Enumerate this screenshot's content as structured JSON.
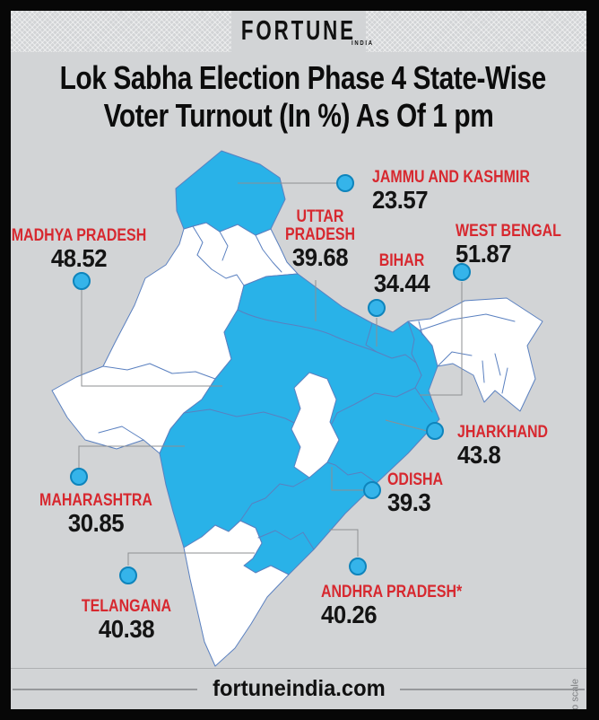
{
  "header": {
    "brand": "FORTUNE",
    "brand_sub": "INDIA"
  },
  "title": {
    "line1": "Lok Sabha Election Phase 4 State-Wise",
    "line2": "Voter Turnout (In %) As Of 1 pm"
  },
  "map": {
    "note": "Map not to scale",
    "states": [
      {
        "id": "jammu-and-kashmir",
        "name": "JAMMU AND KASHMIR",
        "label_lines": [
          "JAMMU AND KASHMIR"
        ],
        "value": "23.57",
        "highlighted": true
      },
      {
        "id": "uttar-pradesh",
        "name": "UTTAR PRADESH",
        "label_lines": [
          "UTTAR",
          "PRADESH"
        ],
        "value": "39.68",
        "highlighted": true
      },
      {
        "id": "bihar",
        "name": "BIHAR",
        "label_lines": [
          "BIHAR"
        ],
        "value": "34.44",
        "highlighted": true
      },
      {
        "id": "west-bengal",
        "name": "WEST BENGAL",
        "label_lines": [
          "WEST BENGAL"
        ],
        "value": "51.87",
        "highlighted": true
      },
      {
        "id": "madhya-pradesh",
        "name": "MADHYA PRADESH",
        "label_lines": [
          "MADHYA PRADESH"
        ],
        "value": "48.52",
        "highlighted": true
      },
      {
        "id": "jharkhand",
        "name": "JHARKHAND",
        "label_lines": [
          "JHARKHAND"
        ],
        "value": "43.8",
        "highlighted": true
      },
      {
        "id": "odisha",
        "name": "ODISHA",
        "label_lines": [
          "ODISHA"
        ],
        "value": "39.3",
        "highlighted": true
      },
      {
        "id": "maharashtra",
        "name": "MAHARASHTRA",
        "label_lines": [
          "MAHARASHTRA"
        ],
        "value": "30.85",
        "highlighted": true
      },
      {
        "id": "telangana",
        "name": "TELANGANA",
        "label_lines": [
          "TELANGANA"
        ],
        "value": "40.38",
        "highlighted": true
      },
      {
        "id": "andhra-pradesh",
        "name": "ANDHRA PRADESH*",
        "label_lines": [
          "ANDHRA PRADESH*"
        ],
        "value": "40.26",
        "highlighted": true
      }
    ]
  },
  "footer": {
    "site": "fortuneindia.com"
  },
  "colors": {
    "background": "#d2d4d6",
    "frame": "#070707",
    "highlight_blue": "#29b2e8",
    "marker_blue": "#35b4ea",
    "state_border": "#5a80c0",
    "label_red": "#d7282f",
    "value_black": "#141414"
  }
}
